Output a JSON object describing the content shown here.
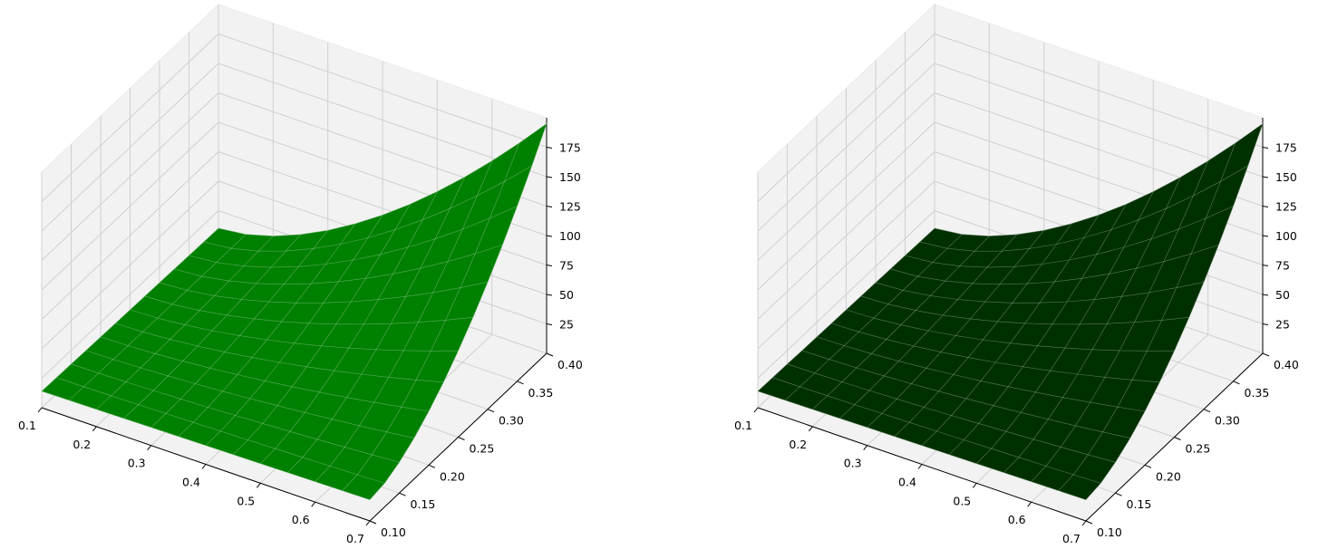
{
  "chart_data": [
    {
      "type": "surface3d",
      "title": "",
      "xlabel": "",
      "ylabel": "",
      "zlabel": "",
      "xlim": [
        0.1,
        0.7
      ],
      "ylim": [
        0.1,
        0.4
      ],
      "zlim": [
        0,
        200
      ],
      "x_ticks": [
        "0.1",
        "0.2",
        "0.3",
        "0.4",
        "0.5",
        "0.6",
        "0.7"
      ],
      "y_ticks": [
        "0.10",
        "0.15",
        "0.20",
        "0.25",
        "0.30",
        "0.35",
        "0.40"
      ],
      "z_ticks": [
        "25",
        "50",
        "75",
        "100",
        "125",
        "150",
        "175"
      ],
      "surface": {
        "x": [
          0.1,
          0.7
        ],
        "y": [
          0.1,
          0.4
        ],
        "z_corners": {
          "x0_y0": 14,
          "x1_y0": 18,
          "x0_y1": 10,
          "x1_y1": 195
        },
        "color": "#008000"
      },
      "grid": true
    },
    {
      "type": "surface3d",
      "title": "",
      "xlabel": "",
      "ylabel": "",
      "zlabel": "",
      "xlim": [
        0.1,
        0.7
      ],
      "ylim": [
        0.1,
        0.4
      ],
      "zlim": [
        0,
        200
      ],
      "x_ticks": [
        "0.1",
        "0.2",
        "0.3",
        "0.4",
        "0.5",
        "0.6",
        "0.7"
      ],
      "y_ticks": [
        "0.10",
        "0.15",
        "0.20",
        "0.25",
        "0.30",
        "0.35",
        "0.40"
      ],
      "z_ticks": [
        "25",
        "50",
        "75",
        "100",
        "125",
        "150",
        "175"
      ],
      "surface": {
        "x": [
          0.1,
          0.7
        ],
        "y": [
          0.1,
          0.4
        ],
        "z_corners": {
          "x0_y0": 14,
          "x1_y0": 18,
          "x0_y1": 10,
          "x1_y1": 195
        },
        "color": "#003000"
      },
      "grid": true
    }
  ]
}
